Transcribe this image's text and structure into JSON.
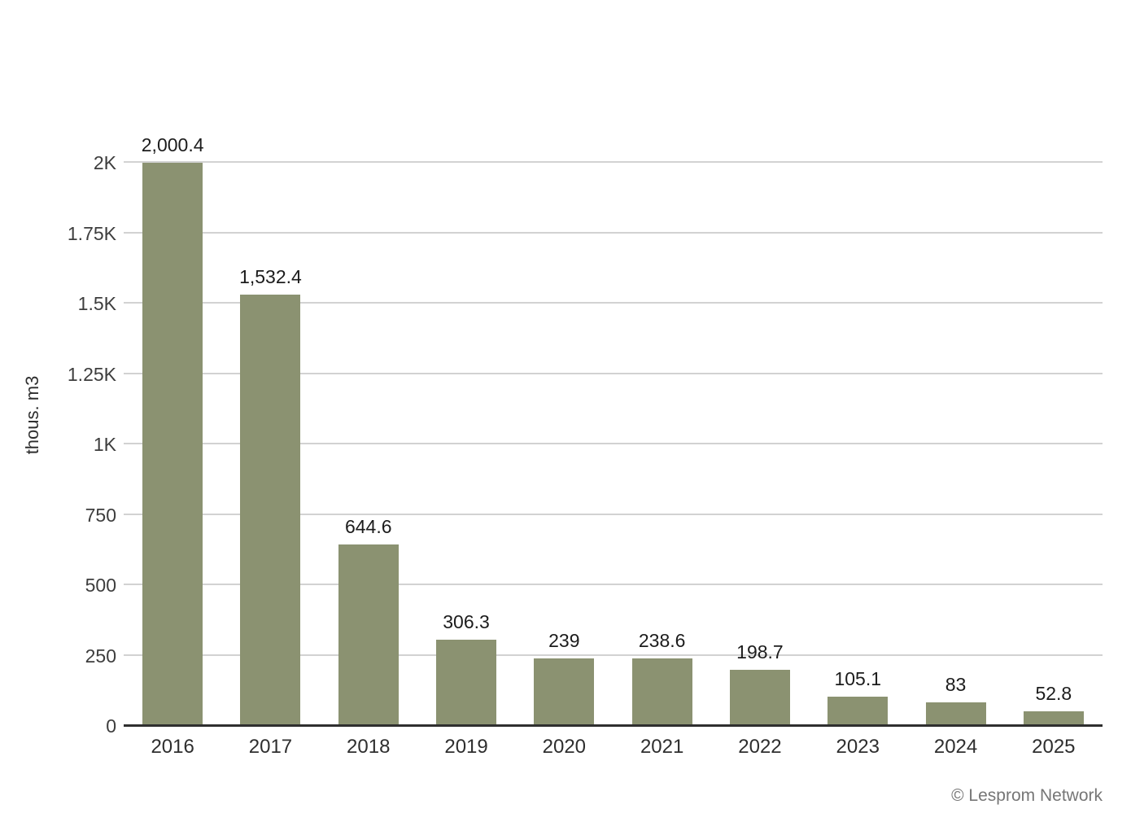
{
  "chart_data": {
    "type": "bar",
    "title": "",
    "categories": [
      "2016",
      "2017",
      "2018",
      "2019",
      "2020",
      "2021",
      "2022",
      "2023",
      "2024",
      "2025"
    ],
    "values": [
      2000.4,
      1532.4,
      644.6,
      306.3,
      239,
      238.6,
      198.7,
      105.1,
      83,
      52.8
    ],
    "value_labels": [
      "2,000.4",
      "1,532.4",
      "644.6",
      "306.3",
      "239",
      "238.6",
      "198.7",
      "105.1",
      "83",
      "52.8"
    ],
    "xlabel": "",
    "ylabel": "thous. m3",
    "ylim": [
      0,
      2000
    ],
    "yticks": [
      0,
      250,
      500,
      750,
      1000,
      1250,
      1500,
      1750,
      2000
    ],
    "ytick_labels": [
      "0",
      "250",
      "500",
      "750",
      "1K",
      "1.25K",
      "1.5K",
      "1.75K",
      "2K"
    ],
    "grid": true,
    "legend": false,
    "bar_color": "#8b9271",
    "gridline_color": "#d2d2d2",
    "axis_color": "#2f2f2f"
  },
  "footer": {
    "credit": "© Lesprom Network"
  }
}
